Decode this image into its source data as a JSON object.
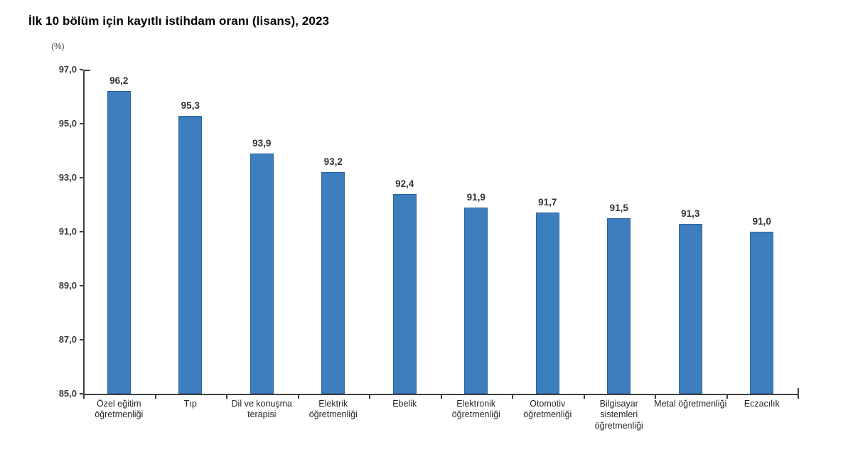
{
  "chart_data": {
    "type": "bar",
    "title": "İlk 10 bölüm için kayıtlı istihdam oranı (lisans), 2023",
    "unit_label": "(%)",
    "categories": [
      "Özel eğitim öğretmenliği",
      "Tıp",
      "Dil ve konuşma terapisi",
      "Elektrik öğretmenliği",
      "Ebelik",
      "Elektronik öğretmenliği",
      "Otomotiv öğretmenliği",
      "Bilgisayar sistemleri öğretmenliği",
      "Metal öğretmenliği",
      "Eczacılık"
    ],
    "values": [
      96.2,
      95.3,
      93.9,
      93.2,
      92.4,
      91.9,
      91.7,
      91.5,
      91.3,
      91.0
    ],
    "value_labels": [
      "96,2",
      "95,3",
      "93,9",
      "93,2",
      "92,4",
      "91,9",
      "91,7",
      "91,5",
      "91,3",
      "91,0"
    ],
    "xlabel": "",
    "ylabel": "",
    "ylim": [
      85,
      97
    ],
    "y_tick_step": 2,
    "y_tick_labels": [
      "85,0",
      "87,0",
      "89,0",
      "91,0",
      "93,0",
      "95,0",
      "97,0"
    ],
    "grid": false,
    "legend": "none",
    "colors": {
      "bar_fill": "#3d7ebf",
      "bar_border": "#2d6499",
      "axis": "#404040",
      "text": "#333333"
    }
  }
}
